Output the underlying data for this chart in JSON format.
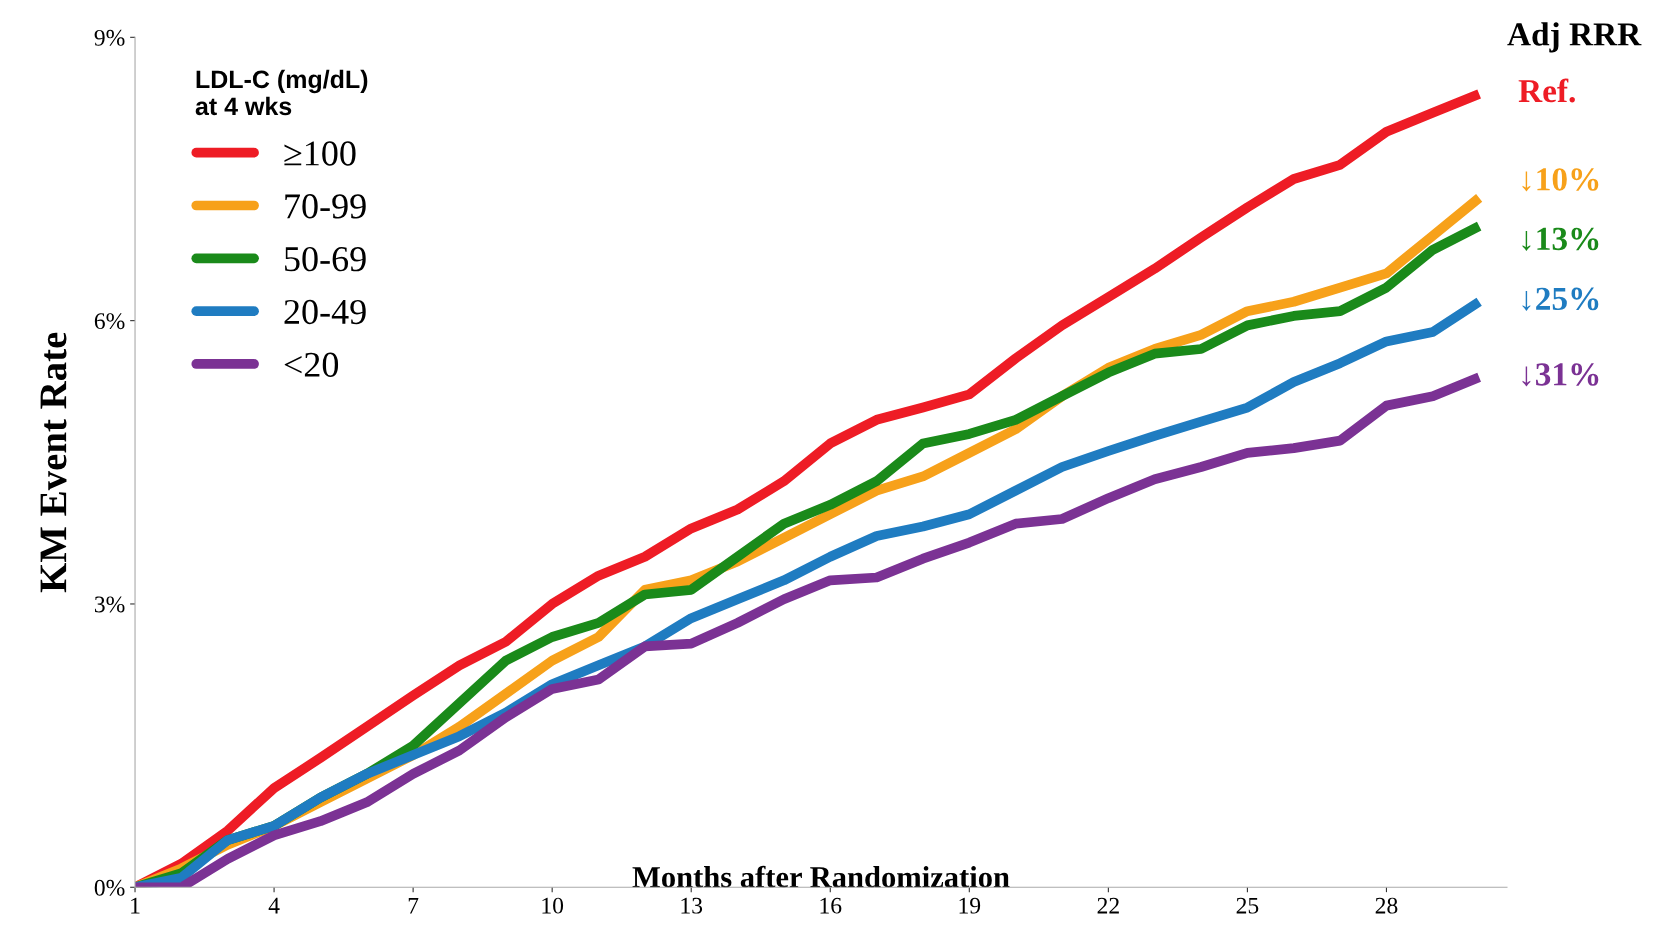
{
  "chart_data": {
    "type": "line",
    "ylabel": "KM Event Rate",
    "xlabel": "Months after Randomization",
    "legend_title": "LDL-C (mg/dL)\nat 4 wks",
    "legend": "top left",
    "grid": false,
    "marker": "none",
    "line_style": "solid",
    "x": [
      1,
      2,
      3,
      4,
      5,
      6,
      7,
      8,
      9,
      10,
      11,
      12,
      13,
      14,
      15,
      16,
      17,
      18,
      19,
      20,
      21,
      22,
      23,
      24,
      25,
      26,
      27,
      28,
      29,
      30
    ],
    "xlim": [
      1,
      30.6
    ],
    "xticks": [
      1,
      4,
      7,
      10,
      13,
      16,
      19,
      22,
      25,
      28
    ],
    "ylim": [
      0,
      9
    ],
    "yticks": [
      {
        "value": 0,
        "label": "0%"
      },
      {
        "value": 3,
        "label": "3%"
      },
      {
        "value": 6,
        "label": "6%"
      },
      {
        "value": 9,
        "label": "9%"
      }
    ],
    "series": [
      {
        "name": "≥100",
        "color": "#ee1c25",
        "values": [
          0,
          0.25,
          0.6,
          1.05,
          1.37,
          1.7,
          2.03,
          2.35,
          2.6,
          3.0,
          3.3,
          3.5,
          3.8,
          4.0,
          4.3,
          4.7,
          4.95,
          5.08,
          5.22,
          5.6,
          5.95,
          6.25,
          6.55,
          6.88,
          7.2,
          7.5,
          7.65,
          8.0,
          8.2,
          8.4
        ]
      },
      {
        "name": "70-99",
        "color": "#f7a11a",
        "values": [
          0,
          0.2,
          0.45,
          0.65,
          0.9,
          1.15,
          1.4,
          1.7,
          2.05,
          2.4,
          2.65,
          3.15,
          3.25,
          3.45,
          3.7,
          3.95,
          4.2,
          4.35,
          4.6,
          4.85,
          5.2,
          5.5,
          5.7,
          5.85,
          6.1,
          6.2,
          6.35,
          6.5,
          6.9,
          7.3
        ]
      },
      {
        "name": "50-69",
        "color": "#1a8a1a",
        "values": [
          0,
          0.15,
          0.5,
          0.65,
          0.95,
          1.2,
          1.5,
          1.95,
          2.4,
          2.65,
          2.8,
          3.1,
          3.15,
          3.5,
          3.85,
          4.05,
          4.3,
          4.7,
          4.8,
          4.95,
          5.2,
          5.45,
          5.65,
          5.7,
          5.95,
          6.05,
          6.1,
          6.35,
          6.75,
          7.0
        ]
      },
      {
        "name": "20-49",
        "color": "#1f7cc1",
        "values": [
          0,
          0.1,
          0.5,
          0.65,
          0.95,
          1.2,
          1.4,
          1.6,
          1.85,
          2.15,
          2.35,
          2.55,
          2.85,
          3.05,
          3.25,
          3.5,
          3.72,
          3.82,
          3.95,
          4.2,
          4.45,
          4.62,
          4.78,
          4.93,
          5.08,
          5.35,
          5.55,
          5.78,
          5.88,
          6.2
        ]
      },
      {
        "name": "<20",
        "color": "#7b3294",
        "values": [
          0,
          0,
          0.3,
          0.55,
          0.7,
          0.9,
          1.2,
          1.45,
          1.8,
          2.1,
          2.2,
          2.55,
          2.58,
          2.8,
          3.05,
          3.25,
          3.28,
          3.48,
          3.65,
          3.85,
          3.9,
          4.12,
          4.32,
          4.45,
          4.6,
          4.65,
          4.73,
          5.1,
          5.2,
          5.4
        ]
      }
    ],
    "annotations": [
      "Adj RRR",
      "Ref.",
      "↓10%",
      "↓13%",
      "↓25%",
      "↓31%"
    ]
  }
}
